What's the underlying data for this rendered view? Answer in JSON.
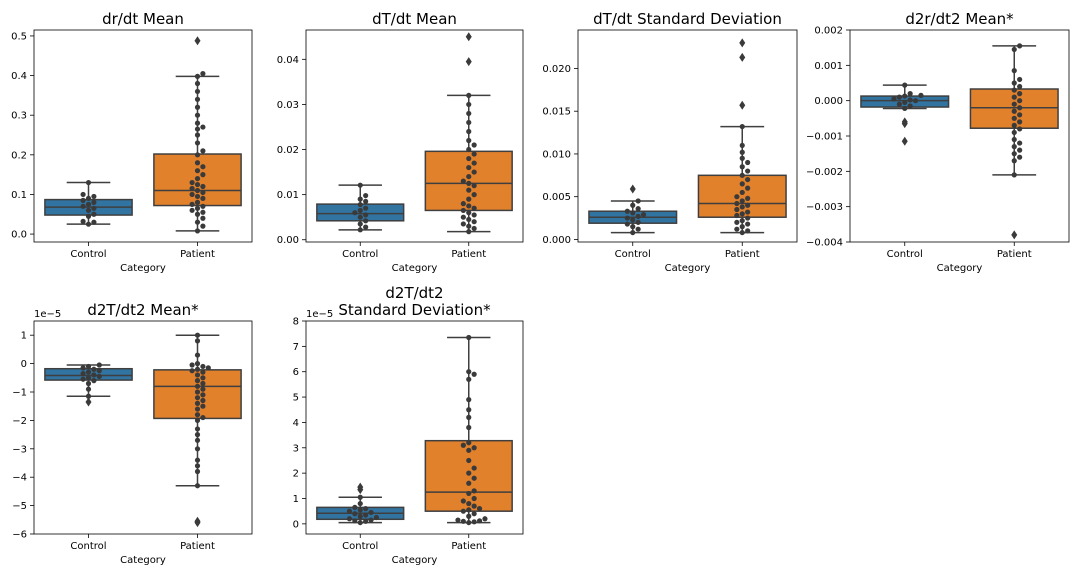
{
  "colors": {
    "control": "#3274a1",
    "patient": "#e1812c",
    "line": "#3f3f3f",
    "point": "#3a3a3a"
  },
  "chart_data": [
    {
      "type": "box",
      "title": "dr/dt Mean",
      "xlabel": "Category",
      "categories": [
        "Control",
        "Patient"
      ],
      "ylim": [
        -0.02,
        0.515
      ],
      "yticks": [
        "0.0",
        "0.1",
        "0.2",
        "0.3",
        "0.4",
        "0.5"
      ],
      "ytick_values": [
        0,
        0.1,
        0.2,
        0.3,
        0.4,
        0.5
      ],
      "multiplier": "",
      "boxes": [
        {
          "category": "Control",
          "q1": 0.048,
          "median": 0.068,
          "q3": 0.087,
          "whisker_low": 0.025,
          "whisker_high": 0.13,
          "outliers": []
        },
        {
          "category": "Patient",
          "q1": 0.072,
          "median": 0.11,
          "q3": 0.202,
          "whisker_low": 0.008,
          "whisker_high": 0.398,
          "outliers": [
            0.488
          ]
        }
      ],
      "points": [
        [
          0.025,
          0.03,
          0.032,
          0.045,
          0.05,
          0.06,
          0.065,
          0.07,
          0.075,
          0.08,
          0.085,
          0.09,
          0.095,
          0.1,
          0.13
        ],
        [
          0.008,
          0.02,
          0.03,
          0.04,
          0.05,
          0.055,
          0.06,
          0.065,
          0.07,
          0.075,
          0.08,
          0.09,
          0.095,
          0.1,
          0.105,
          0.11,
          0.115,
          0.12,
          0.125,
          0.13,
          0.14,
          0.15,
          0.16,
          0.17,
          0.18,
          0.2,
          0.21,
          0.23,
          0.25,
          0.265,
          0.27,
          0.28,
          0.3,
          0.32,
          0.34,
          0.36,
          0.38,
          0.398,
          0.405
        ]
      ]
    },
    {
      "type": "box",
      "title": "dT/dt Mean",
      "xlabel": "Category",
      "categories": [
        "Control",
        "Patient"
      ],
      "ylim": [
        -0.0005,
        0.0465
      ],
      "yticks": [
        "0.00",
        "0.01",
        "0.02",
        "0.03",
        "0.04"
      ],
      "ytick_values": [
        0,
        0.01,
        0.02,
        0.03,
        0.04
      ],
      "multiplier": "",
      "boxes": [
        {
          "category": "Control",
          "q1": 0.0042,
          "median": 0.0058,
          "q3": 0.0079,
          "whisker_low": 0.0022,
          "whisker_high": 0.0121,
          "outliers": []
        },
        {
          "category": "Patient",
          "q1": 0.0065,
          "median": 0.0125,
          "q3": 0.0196,
          "whisker_low": 0.0018,
          "whisker_high": 0.032,
          "outliers": [
            0.0395,
            0.045
          ]
        }
      ],
      "points": [
        [
          0.0022,
          0.0028,
          0.0035,
          0.0042,
          0.005,
          0.0055,
          0.006,
          0.0065,
          0.007,
          0.0078,
          0.0085,
          0.009,
          0.0098,
          0.0121
        ],
        [
          0.0018,
          0.0025,
          0.003,
          0.0035,
          0.004,
          0.0045,
          0.005,
          0.0055,
          0.006,
          0.0065,
          0.007,
          0.0075,
          0.008,
          0.009,
          0.01,
          0.011,
          0.012,
          0.0125,
          0.013,
          0.014,
          0.015,
          0.016,
          0.017,
          0.018,
          0.019,
          0.02,
          0.021,
          0.022,
          0.024,
          0.026,
          0.028,
          0.03,
          0.032
        ]
      ]
    },
    {
      "type": "box",
      "title": "dT/dt Standard Deviation",
      "xlabel": "Category",
      "categories": [
        "Control",
        "Patient"
      ],
      "ylim": [
        -0.0003,
        0.0245
      ],
      "yticks": [
        "0.000",
        "0.005",
        "0.010",
        "0.015",
        "0.020"
      ],
      "ytick_values": [
        0,
        0.005,
        0.01,
        0.015,
        0.02
      ],
      "multiplier": "",
      "boxes": [
        {
          "category": "Control",
          "q1": 0.0019,
          "median": 0.0026,
          "q3": 0.0033,
          "whisker_low": 0.0008,
          "whisker_high": 0.0045,
          "outliers": [
            0.0059
          ]
        },
        {
          "category": "Patient",
          "q1": 0.0026,
          "median": 0.0042,
          "q3": 0.0075,
          "whisker_low": 0.0008,
          "whisker_high": 0.0132,
          "outliers": [
            0.0157,
            0.0213,
            0.023
          ]
        }
      ],
      "points": [
        [
          0.0008,
          0.0012,
          0.0015,
          0.0018,
          0.002,
          0.0023,
          0.0025,
          0.0027,
          0.0029,
          0.0031,
          0.0033,
          0.0036,
          0.004,
          0.0045
        ],
        [
          0.0008,
          0.001,
          0.0012,
          0.0015,
          0.0018,
          0.002,
          0.0022,
          0.0025,
          0.0028,
          0.003,
          0.0032,
          0.0035,
          0.0038,
          0.004,
          0.0042,
          0.0045,
          0.0048,
          0.005,
          0.0055,
          0.006,
          0.0065,
          0.007,
          0.0075,
          0.008,
          0.0085,
          0.009,
          0.0095,
          0.0102,
          0.011,
          0.0132
        ]
      ]
    },
    {
      "type": "box",
      "title": "d2r/dt2 Mean*",
      "xlabel": "Category",
      "categories": [
        "Control",
        "Patient"
      ],
      "ylim": [
        -0.004,
        0.002
      ],
      "yticks": [
        "−0.004",
        "−0.003",
        "−0.002",
        "−0.001",
        "0.000",
        "0.001",
        "0.002"
      ],
      "ytick_values": [
        -0.004,
        -0.003,
        -0.002,
        -0.001,
        0,
        0.001,
        0.002
      ],
      "multiplier": "",
      "boxes": [
        {
          "category": "Control",
          "q1": -0.00018,
          "median": 0.0,
          "q3": 0.00013,
          "whisker_low": -0.00022,
          "whisker_high": 0.00044,
          "outliers": [
            -0.00065,
            -0.0006,
            -0.00115
          ]
        },
        {
          "category": "Patient",
          "q1": -0.00078,
          "median": -0.0002,
          "q3": 0.00033,
          "whisker_low": -0.0021,
          "whisker_high": 0.00155,
          "outliers": [
            -0.0038
          ]
        }
      ],
      "points": [
        [
          -0.00022,
          -0.00015,
          -0.0001,
          -5e-05,
          0.0,
          2e-05,
          5e-05,
          0.0001,
          0.00013,
          0.00015,
          0.0002,
          0.00044
        ],
        [
          -0.0021,
          -0.0017,
          -0.0016,
          -0.0015,
          -0.0014,
          -0.0013,
          -0.0012,
          -0.0011,
          -0.0009,
          -0.0008,
          -0.0007,
          -0.0006,
          -0.0005,
          -0.0004,
          -0.0003,
          -0.0002,
          -0.0001,
          0.0,
          0.0001,
          0.0002,
          0.0003,
          0.0004,
          0.0005,
          0.0006,
          0.00085,
          0.00145,
          0.00155
        ]
      ]
    },
    {
      "type": "box",
      "title": "d2T/dt2 Mean*",
      "xlabel": "Category",
      "categories": [
        "Control",
        "Patient"
      ],
      "ylim": [
        -6,
        1.5
      ],
      "yticks": [
        "−6",
        "−5",
        "−4",
        "−3",
        "−2",
        "−1",
        "0",
        "1"
      ],
      "ytick_values": [
        -6,
        -5,
        -4,
        -3,
        -2,
        -1,
        0,
        1
      ],
      "multiplier": "1e−5",
      "boxes": [
        {
          "category": "Control",
          "q1": -0.58,
          "median": -0.42,
          "q3": -0.18,
          "whisker_low": -1.15,
          "whisker_high": -0.05,
          "outliers": [
            -1.35
          ]
        },
        {
          "category": "Patient",
          "q1": -1.93,
          "median": -0.8,
          "q3": -0.22,
          "whisker_low": -4.3,
          "whisker_high": 1.0,
          "outliers": [
            -5.55,
            -5.6
          ]
        }
      ],
      "points": [
        [
          -1.15,
          -0.9,
          -0.7,
          -0.6,
          -0.55,
          -0.5,
          -0.45,
          -0.4,
          -0.35,
          -0.3,
          -0.25,
          -0.2,
          -0.15,
          -0.1,
          -0.05
        ],
        [
          -4.3,
          -3.8,
          -3.6,
          -3.4,
          -3.0,
          -2.7,
          -2.5,
          -2.3,
          -2.0,
          -1.9,
          -1.8,
          -1.6,
          -1.5,
          -1.4,
          -1.3,
          -1.2,
          -1.1,
          -1.0,
          -0.9,
          -0.8,
          -0.7,
          -0.6,
          -0.5,
          -0.4,
          -0.3,
          -0.25,
          -0.2,
          -0.15,
          -0.1,
          -0.05,
          0.0,
          0.3,
          0.8,
          1.0
        ]
      ]
    },
    {
      "type": "box",
      "title": "d2T/dt2\nStandard Deviation*",
      "xlabel": "Category",
      "categories": [
        "Control",
        "Patient"
      ],
      "ylim": [
        -0.4,
        8
      ],
      "yticks": [
        "0",
        "1",
        "2",
        "3",
        "4",
        "5",
        "6",
        "7",
        "8"
      ],
      "ytick_values": [
        0,
        1,
        2,
        3,
        4,
        5,
        6,
        7,
        8
      ],
      "multiplier": "1e−5",
      "boxes": [
        {
          "category": "Control",
          "q1": 0.18,
          "median": 0.42,
          "q3": 0.65,
          "whisker_low": 0.05,
          "whisker_high": 1.05,
          "outliers": [
            1.35,
            1.45
          ]
        },
        {
          "category": "Patient",
          "q1": 0.5,
          "median": 1.25,
          "q3": 3.28,
          "whisker_low": 0.05,
          "whisker_high": 7.35,
          "outliers": []
        }
      ],
      "points": [
        [
          0.05,
          0.1,
          0.12,
          0.15,
          0.2,
          0.25,
          0.3,
          0.35,
          0.4,
          0.45,
          0.5,
          0.55,
          0.6,
          0.65,
          0.8,
          1.05
        ],
        [
          0.05,
          0.08,
          0.1,
          0.12,
          0.15,
          0.2,
          0.3,
          0.4,
          0.5,
          0.55,
          0.6,
          0.7,
          0.8,
          0.9,
          1.0,
          1.2,
          1.3,
          1.6,
          1.8,
          2.0,
          2.2,
          2.5,
          2.9,
          3.0,
          3.1,
          3.2,
          3.8,
          4.2,
          4.5,
          4.9,
          5.7,
          5.9,
          6.0,
          7.35
        ]
      ]
    }
  ]
}
